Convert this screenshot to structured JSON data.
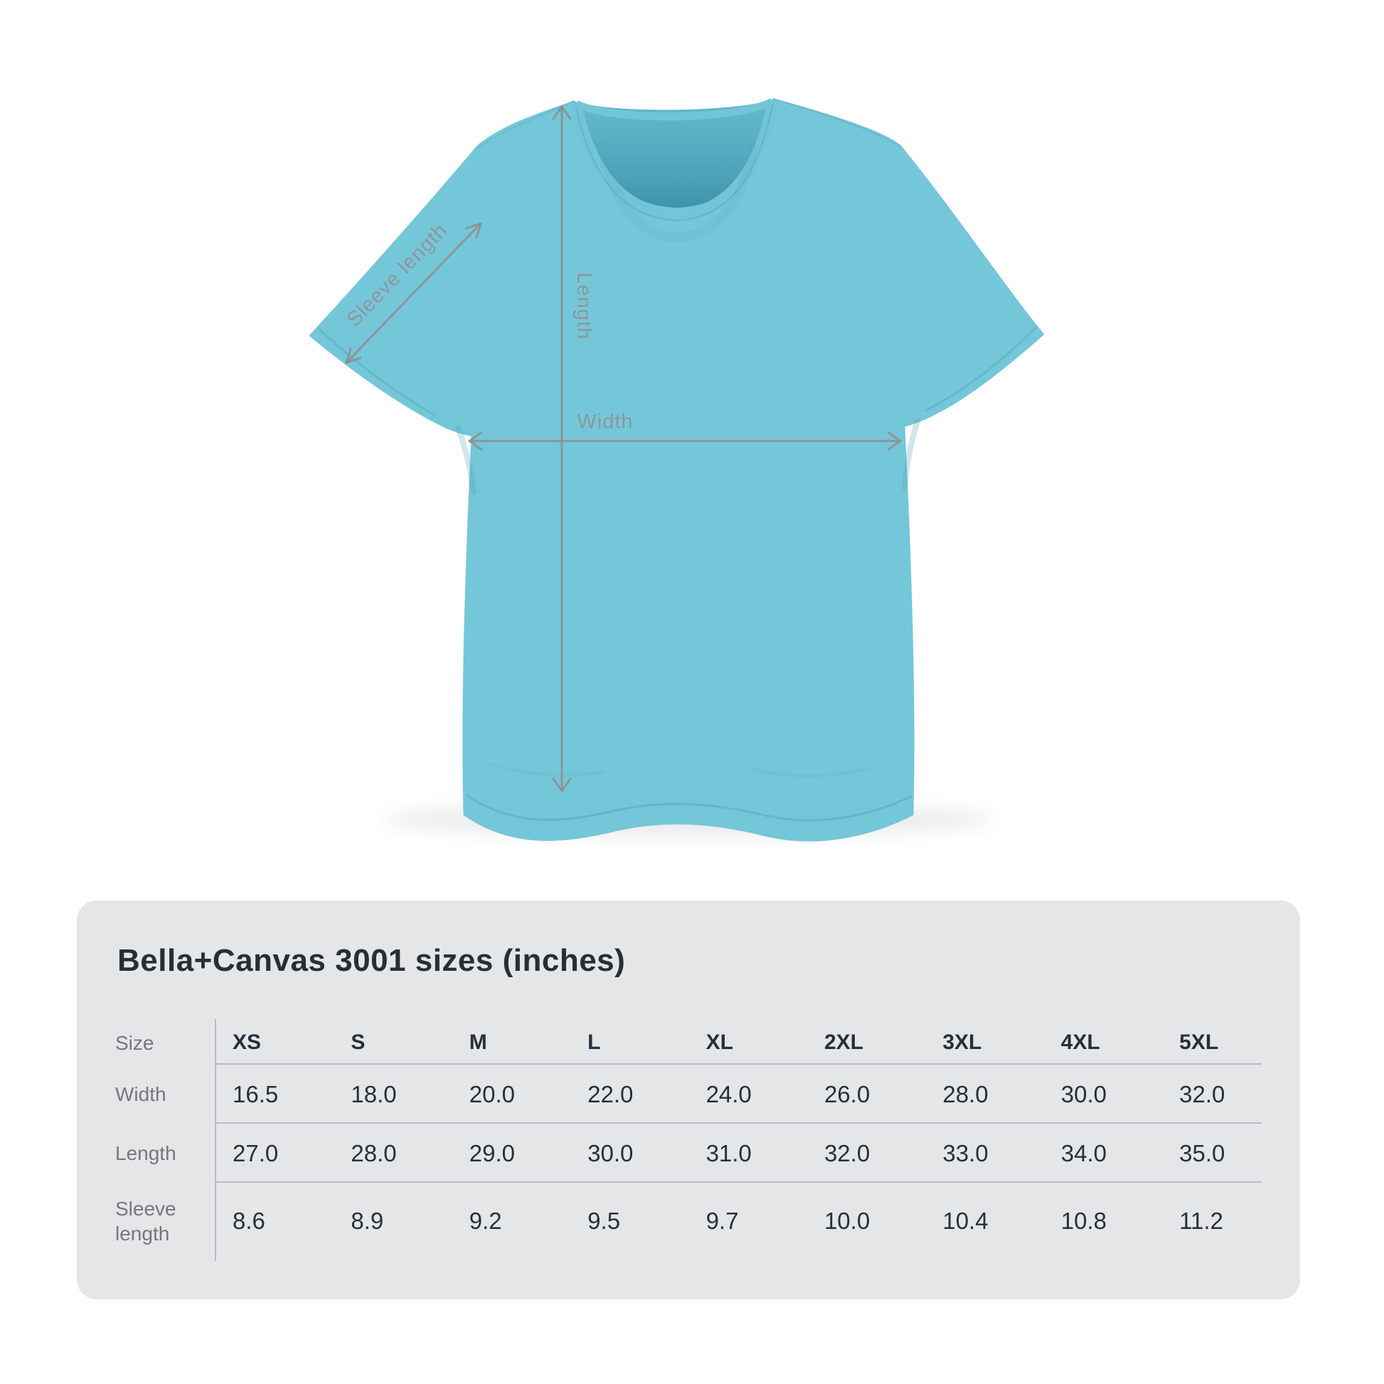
{
  "theme": {
    "page_bg": "#ffffff",
    "shirt_color": "#74c7d9",
    "shirt_shadow_color": "#4fa5bb",
    "arrow_color": "#8f8d8b",
    "diagram_label_color": "#8f979a",
    "card_bg": "#e4e6e8",
    "title_color": "#262f36",
    "row_label_color": "#73787c",
    "cell_text_color": "#25303a",
    "grid_line_color": "#b7bbbe"
  },
  "diagram": {
    "labels": {
      "length": "Length",
      "width": "Width",
      "sleeve": "Sleeve length"
    }
  },
  "size_card": {
    "title": "Bella+Canvas 3001 sizes (inches)",
    "table": {
      "corner_label": "Size",
      "columns": [
        "XS",
        "S",
        "M",
        "L",
        "XL",
        "2XL",
        "3XL",
        "4XL",
        "5XL"
      ],
      "rows": [
        {
          "label": "Width",
          "values": [
            "16.5",
            "18.0",
            "20.0",
            "22.0",
            "24.0",
            "26.0",
            "28.0",
            "30.0",
            "32.0"
          ]
        },
        {
          "label": "Length",
          "values": [
            "27.0",
            "28.0",
            "29.0",
            "30.0",
            "31.0",
            "32.0",
            "33.0",
            "34.0",
            "35.0"
          ]
        },
        {
          "label": "Sleeve length",
          "values": [
            "8.6",
            "8.9",
            "9.2",
            "9.5",
            "9.7",
            "10.0",
            "10.4",
            "10.8",
            "11.2"
          ]
        }
      ]
    }
  }
}
